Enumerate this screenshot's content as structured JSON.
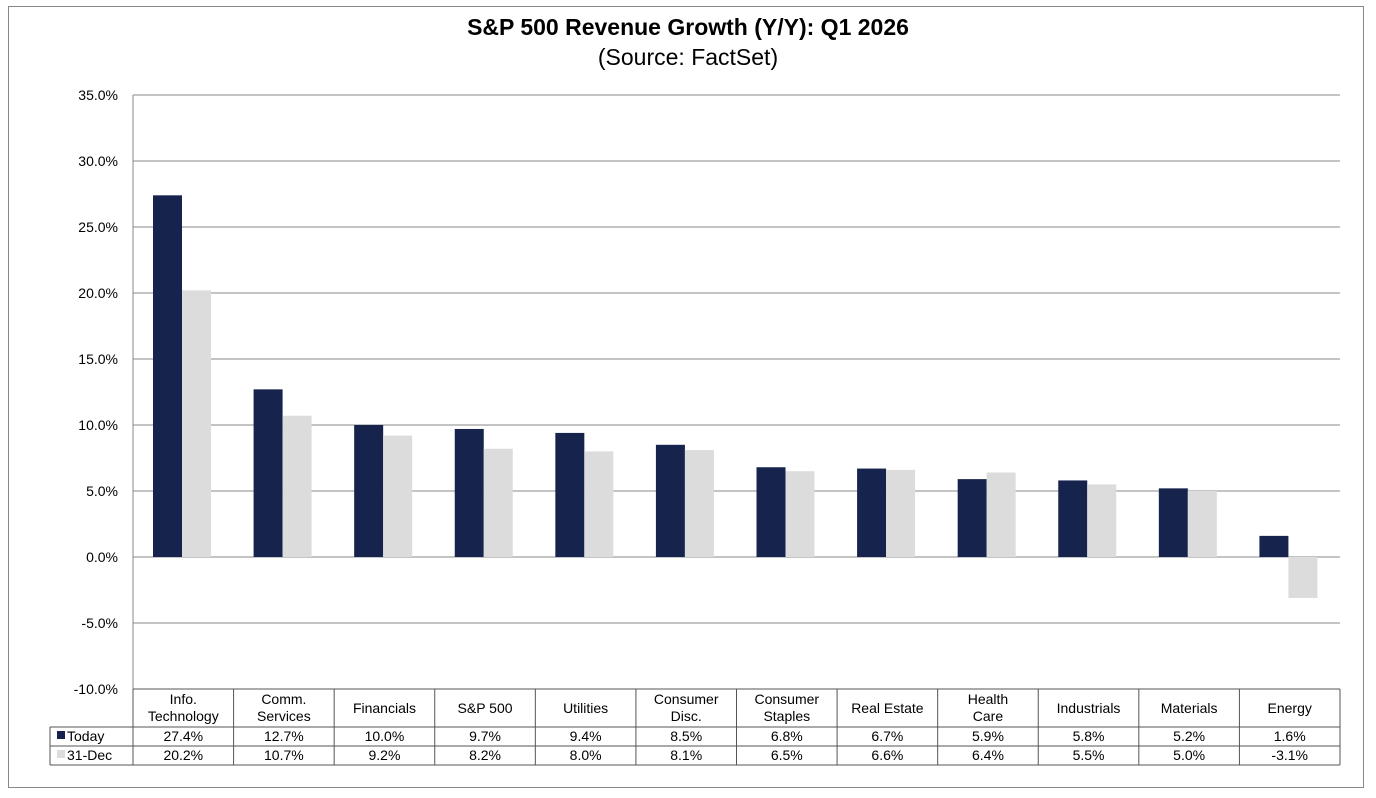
{
  "chart_data": {
    "type": "bar",
    "title": "S&P 500 Revenue Growth (Y/Y): Q1 2026",
    "subtitle": "(Source: FactSet)",
    "categories": [
      [
        "Info.",
        "Technology"
      ],
      [
        "Comm.",
        "Services"
      ],
      [
        "Financials"
      ],
      [
        "S&P 500"
      ],
      [
        "Utilities"
      ],
      [
        "Consumer",
        "Disc."
      ],
      [
        "Consumer",
        "Staples"
      ],
      [
        "Real Estate"
      ],
      [
        "Health",
        "Care"
      ],
      [
        "Industrials"
      ],
      [
        "Materials"
      ],
      [
        "Energy"
      ]
    ],
    "series": [
      {
        "name": "Today",
        "color": "#16244d",
        "values": [
          27.4,
          12.7,
          10.0,
          9.7,
          9.4,
          8.5,
          6.8,
          6.7,
          5.9,
          5.8,
          5.2,
          1.6
        ],
        "labels": [
          "27.4%",
          "12.7%",
          "10.0%",
          "9.7%",
          "9.4%",
          "8.5%",
          "6.8%",
          "6.7%",
          "5.9%",
          "5.8%",
          "5.2%",
          "1.6%"
        ]
      },
      {
        "name": "31-Dec",
        "color": "#dcdcdc",
        "values": [
          20.2,
          10.7,
          9.2,
          8.2,
          8.0,
          8.1,
          6.5,
          6.6,
          6.4,
          5.5,
          5.0,
          -3.1
        ],
        "labels": [
          "20.2%",
          "10.7%",
          "9.2%",
          "8.2%",
          "8.0%",
          "8.1%",
          "6.5%",
          "6.6%",
          "6.4%",
          "5.5%",
          "5.0%",
          "-3.1%"
        ]
      }
    ],
    "yticks": [
      "35.0%",
      "30.0%",
      "25.0%",
      "20.0%",
      "15.0%",
      "10.0%",
      "5.0%",
      "0.0%",
      "-5.0%",
      "-10.0%"
    ],
    "ylim": [
      -10,
      35
    ],
    "grid": true,
    "legend": "data-table"
  }
}
